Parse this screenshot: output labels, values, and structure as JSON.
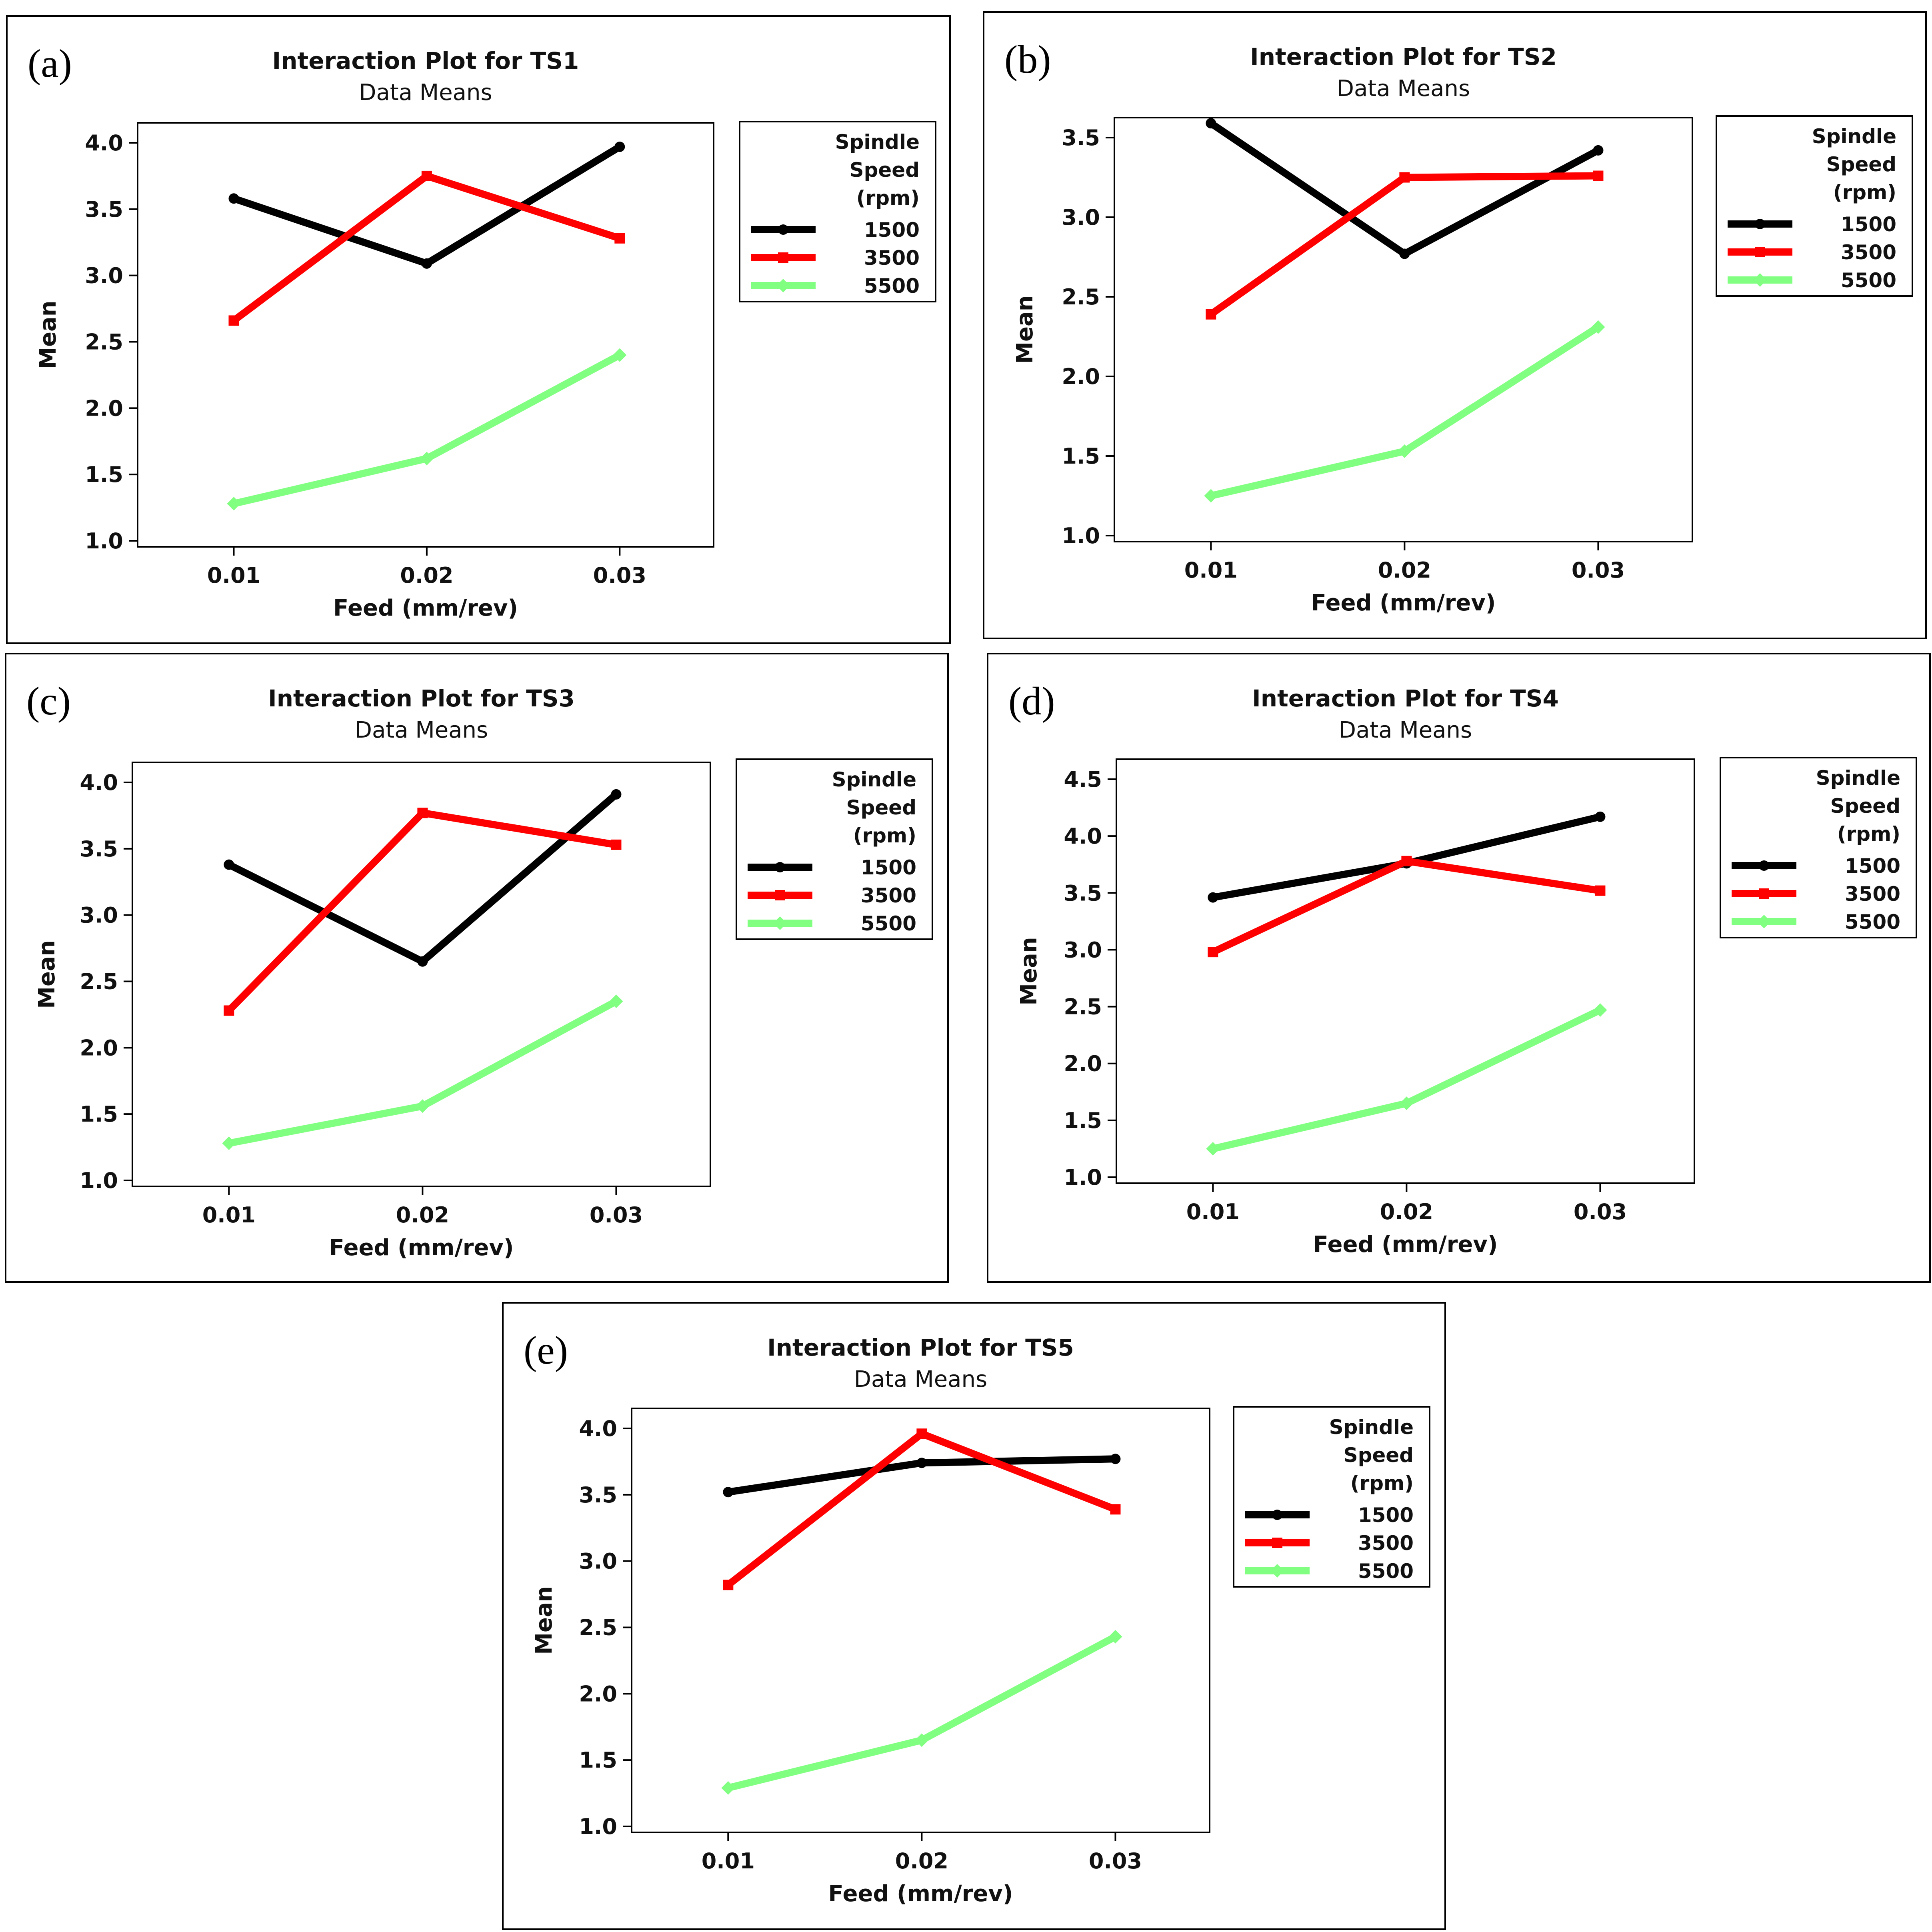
{
  "chart_data": [
    {
      "id": "a",
      "panel_label": "(a)",
      "type": "line",
      "title": "Interaction Plot for TS1",
      "subtitle": "Data Means",
      "xlabel": "Feed (mm/rev)",
      "ylabel": "Mean",
      "categories": [
        "0.01",
        "0.02",
        "0.03"
      ],
      "ylim": [
        1.0,
        4.0
      ],
      "yticks": [
        "1.0",
        "1.5",
        "2.0",
        "2.5",
        "3.0",
        "3.5",
        "4.0"
      ],
      "legend": {
        "title": [
          "Spindle",
          "Speed",
          "(rpm)"
        ],
        "position": "right"
      },
      "series": [
        {
          "name": "1500",
          "color": "#000000",
          "marker": "circle",
          "values": [
            3.58,
            3.09,
            3.97
          ]
        },
        {
          "name": "3500",
          "color": "#ff0000",
          "marker": "square",
          "values": [
            2.66,
            3.75,
            3.28
          ]
        },
        {
          "name": "5500",
          "color": "#80ff80",
          "marker": "diamond",
          "values": [
            1.28,
            1.62,
            2.4
          ]
        }
      ]
    },
    {
      "id": "b",
      "panel_label": "(b)",
      "type": "line",
      "title": "Interaction Plot for TS2",
      "subtitle": "Data Means",
      "xlabel": "Feed (mm/rev)",
      "ylabel": "Mean",
      "categories": [
        "0.01",
        "0.02",
        "0.03"
      ],
      "ylim": [
        1.0,
        3.5
      ],
      "yticks": [
        "1.0",
        "1.5",
        "2.0",
        "2.5",
        "3.0",
        "3.5"
      ],
      "legend": {
        "title": [
          "Spindle",
          "Speed",
          "(rpm)"
        ],
        "position": "right"
      },
      "series": [
        {
          "name": "1500",
          "color": "#000000",
          "marker": "circle",
          "values": [
            3.59,
            2.77,
            3.42
          ]
        },
        {
          "name": "3500",
          "color": "#ff0000",
          "marker": "square",
          "values": [
            2.39,
            3.25,
            3.26
          ]
        },
        {
          "name": "5500",
          "color": "#80ff80",
          "marker": "diamond",
          "values": [
            1.25,
            1.53,
            2.31
          ]
        }
      ]
    },
    {
      "id": "c",
      "panel_label": "(c)",
      "type": "line",
      "title": "Interaction Plot for TS3",
      "subtitle": "Data Means",
      "xlabel": "Feed (mm/rev)",
      "ylabel": "Mean",
      "categories": [
        "0.01",
        "0.02",
        "0.03"
      ],
      "ylim": [
        1.0,
        4.0
      ],
      "yticks": [
        "1.0",
        "1.5",
        "2.0",
        "2.5",
        "3.0",
        "3.5",
        "4.0"
      ],
      "legend": {
        "title": [
          "Spindle",
          "Speed",
          "(rpm)"
        ],
        "position": "right"
      },
      "series": [
        {
          "name": "1500",
          "color": "#000000",
          "marker": "circle",
          "values": [
            3.38,
            2.65,
            3.91
          ]
        },
        {
          "name": "3500",
          "color": "#ff0000",
          "marker": "square",
          "values": [
            2.28,
            3.77,
            3.53
          ]
        },
        {
          "name": "5500",
          "color": "#80ff80",
          "marker": "diamond",
          "values": [
            1.28,
            1.56,
            2.35
          ]
        }
      ]
    },
    {
      "id": "d",
      "panel_label": "(d)",
      "type": "line",
      "title": "Interaction Plot for TS4",
      "subtitle": "Data Means",
      "xlabel": "Feed (mm/rev)",
      "ylabel": "Mean",
      "categories": [
        "0.01",
        "0.02",
        "0.03"
      ],
      "ylim": [
        1.0,
        4.5
      ],
      "yticks": [
        "1.0",
        "1.5",
        "2.0",
        "2.5",
        "3.0",
        "3.5",
        "4.0",
        "4.5"
      ],
      "legend": {
        "title": [
          "Spindle",
          "Speed",
          "(rpm)"
        ],
        "position": "right"
      },
      "series": [
        {
          "name": "1500",
          "color": "#000000",
          "marker": "circle",
          "values": [
            3.46,
            3.76,
            4.17
          ]
        },
        {
          "name": "3500",
          "color": "#ff0000",
          "marker": "square",
          "values": [
            2.98,
            3.78,
            3.52
          ]
        },
        {
          "name": "5500",
          "color": "#80ff80",
          "marker": "diamond",
          "values": [
            1.25,
            1.65,
            2.47
          ]
        }
      ]
    },
    {
      "id": "e",
      "panel_label": "(e)",
      "type": "line",
      "title": "Interaction Plot for TS5",
      "subtitle": "Data Means",
      "xlabel": "Feed (mm/rev)",
      "ylabel": "Mean",
      "categories": [
        "0.01",
        "0.02",
        "0.03"
      ],
      "ylim": [
        1.0,
        4.0
      ],
      "yticks": [
        "1.0",
        "1.5",
        "2.0",
        "2.5",
        "3.0",
        "3.5",
        "4.0"
      ],
      "legend": {
        "title": [
          "Spindle",
          "Speed",
          "(rpm)"
        ],
        "position": "right"
      },
      "series": [
        {
          "name": "1500",
          "color": "#000000",
          "marker": "circle",
          "values": [
            3.52,
            3.74,
            3.77
          ]
        },
        {
          "name": "3500",
          "color": "#ff0000",
          "marker": "square",
          "values": [
            2.82,
            3.96,
            3.39
          ]
        },
        {
          "name": "5500",
          "color": "#80ff80",
          "marker": "diamond",
          "values": [
            1.29,
            1.65,
            2.43
          ]
        }
      ]
    }
  ]
}
